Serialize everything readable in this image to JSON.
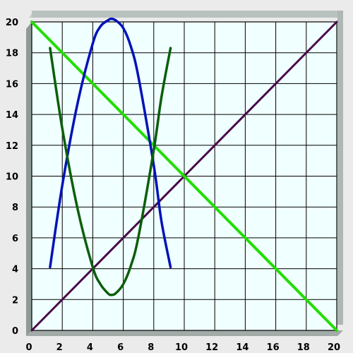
{
  "chart_data": {
    "type": "line",
    "title": "",
    "xlabel": "",
    "ylabel": "",
    "xlim": [
      0,
      20
    ],
    "ylim": [
      0,
      20
    ],
    "x_ticks": [
      0,
      2,
      4,
      6,
      8,
      10,
      12,
      14,
      16,
      18,
      20
    ],
    "y_ticks": [
      0,
      2,
      4,
      6,
      8,
      10,
      12,
      14,
      16,
      18,
      20
    ],
    "grid": true,
    "legend": "none",
    "colors": {
      "plot_background": "#f0ffff",
      "frame": "#a9b3b0",
      "grid": "#000000",
      "page_background": "#ebebeb"
    },
    "series": [
      {
        "color": "#480a4a",
        "width": 3,
        "x": [
          0,
          20
        ],
        "y": [
          0,
          20
        ]
      },
      {
        "color": "#22dd00",
        "width": 4,
        "x": [
          0,
          20
        ],
        "y": [
          20,
          0
        ]
      },
      {
        "color": "#0012b8",
        "width": 3.5,
        "x": [
          1.2,
          2,
          3,
          4,
          4.5,
          5,
          5.2,
          5.5,
          6,
          6.5,
          7,
          8,
          8.5,
          9.1
        ],
        "y": [
          4.1,
          9.4,
          14.7,
          18.6,
          19.7,
          20.1,
          20.2,
          20.1,
          19.6,
          18.4,
          16.4,
          10.7,
          7.1,
          4.1
        ]
      },
      {
        "color": "#0b5e0b",
        "width": 3.5,
        "x": [
          1.2,
          2,
          3,
          4,
          4.5,
          5,
          5.2,
          5.5,
          6,
          6.5,
          7,
          8,
          8.5,
          9.1
        ],
        "y": [
          18.3,
          13.1,
          7.9,
          4.1,
          3.0,
          2.4,
          2.3,
          2.4,
          3.0,
          4.2,
          6.1,
          11.7,
          15.1,
          18.3
        ]
      }
    ]
  }
}
